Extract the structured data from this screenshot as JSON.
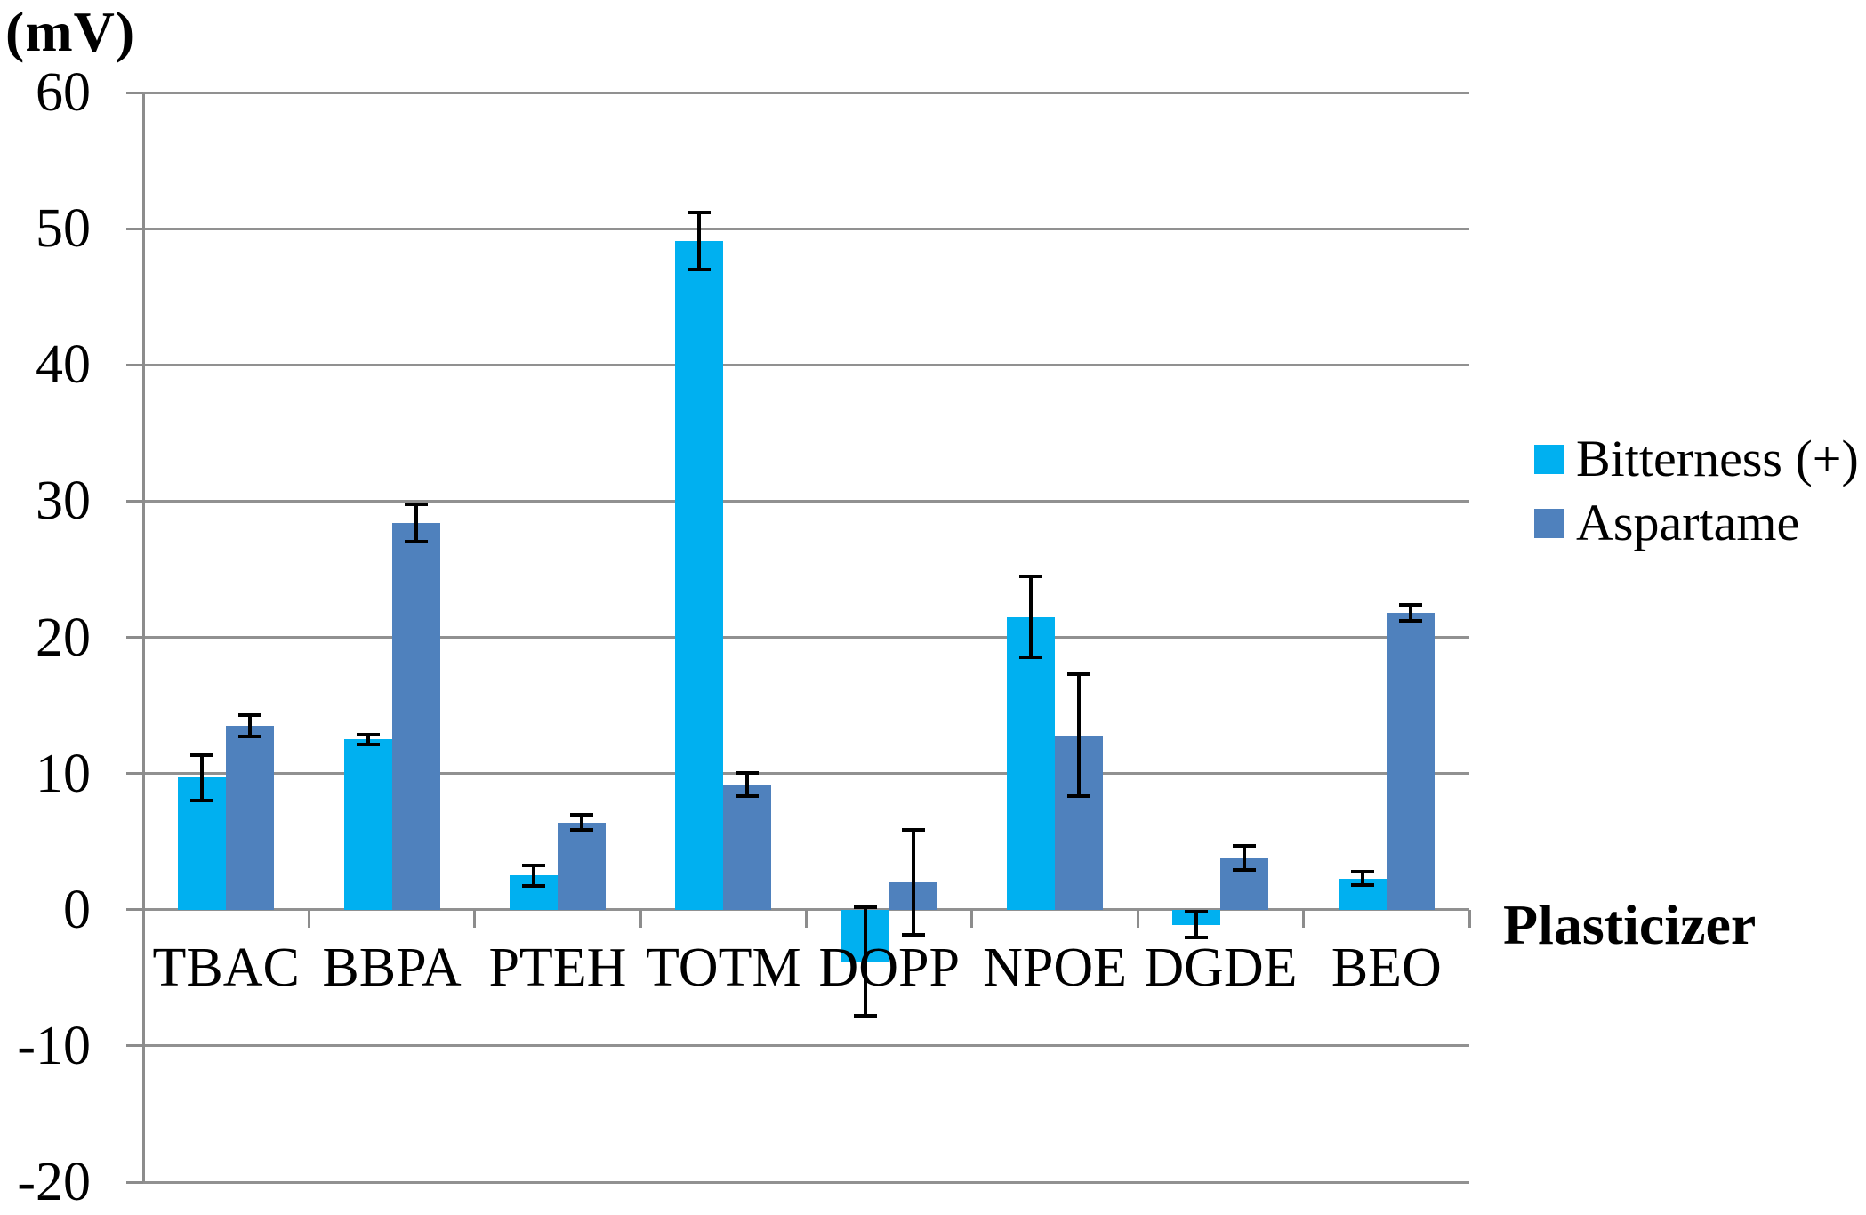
{
  "chart": {
    "y_unit_label": "(mV)",
    "x_axis_title": "Plasticizer"
  },
  "chart_data": {
    "type": "bar",
    "title": "",
    "categories": [
      "TBAC",
      "BBPA",
      "PTEH",
      "TOTM",
      "DOPP",
      "NPOE",
      "DGDE",
      "BEO"
    ],
    "series": [
      {
        "name": "Bitterness (+)",
        "color": "#00b0f0",
        "values": [
          9.7,
          12.5,
          2.5,
          49.1,
          -3.8,
          21.5,
          -1.1,
          2.3
        ],
        "errors": [
          1.8,
          0.5,
          0.9,
          2.2,
          4.1,
          3.1,
          1.1,
          0.6
        ]
      },
      {
        "name": "Aspartame",
        "color": "#4f81bd",
        "values": [
          13.5,
          28.4,
          6.4,
          9.2,
          2.0,
          12.8,
          3.8,
          21.8
        ],
        "errors": [
          0.9,
          1.5,
          0.7,
          1.0,
          4.0,
          4.6,
          1.0,
          0.7
        ]
      }
    ],
    "xlabel": "Plasticizer",
    "ylabel": "(mV)",
    "ylim": [
      -20,
      60
    ],
    "ytick_step": 10,
    "ytick_labels": [
      "60",
      "50",
      "40",
      "30",
      "20",
      "10",
      "0",
      "-10",
      "-20"
    ],
    "grid": true,
    "error_bars": true,
    "legend_position": "right"
  },
  "style": {
    "grid_color": "#919191",
    "axis_color": "#8c8c8c",
    "error_bar_color": "#000000",
    "background": "#ffffff",
    "text_color": "#000000"
  }
}
